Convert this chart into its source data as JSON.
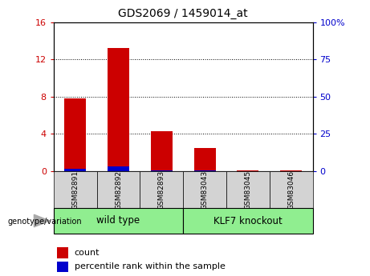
{
  "title": "GDS2069 / 1459014_at",
  "categories": [
    "GSM82891",
    "GSM82892",
    "GSM82893",
    "GSM83043",
    "GSM83045",
    "GSM83046"
  ],
  "count_values": [
    7.8,
    13.2,
    4.3,
    2.5,
    0.05,
    0.05
  ],
  "percentile_values": [
    1.3,
    2.9,
    0.5,
    0.4,
    0.05,
    0.05
  ],
  "left_ylim": [
    0,
    16
  ],
  "right_ylim": [
    0,
    100
  ],
  "left_yticks": [
    0,
    4,
    8,
    12,
    16
  ],
  "right_yticks": [
    0,
    25,
    50,
    75,
    100
  ],
  "left_yticklabels": [
    "0",
    "4",
    "8",
    "12",
    "16"
  ],
  "right_yticklabels": [
    "0",
    "25",
    "50",
    "75",
    "100%"
  ],
  "left_tick_color": "#cc0000",
  "right_tick_color": "#0000cc",
  "count_color": "#cc0000",
  "percentile_color": "#0000cc",
  "group1_label": "wild type",
  "group2_label": "KLF7 knockout",
  "group1_indices": [
    0,
    1,
    2
  ],
  "group2_indices": [
    3,
    4,
    5
  ],
  "group_bar_color": "#90ee90",
  "xlabel_label": "genotype/variation",
  "legend_count_label": "count",
  "legend_percentile_label": "percentile rank within the sample",
  "plot_bg": "#ffffff",
  "dotted_lines": [
    4,
    8,
    12
  ]
}
